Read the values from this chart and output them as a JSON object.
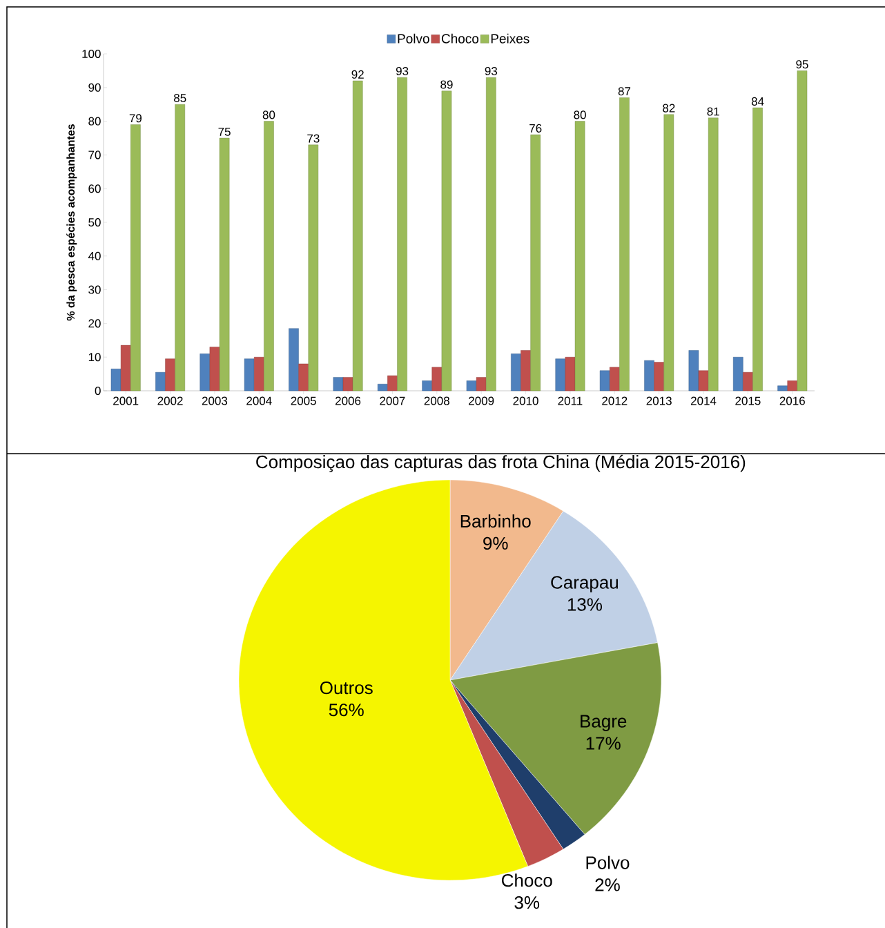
{
  "chart_data": [
    {
      "type": "bar",
      "ylabel": "% da pesca espécies acompanhantes",
      "categories": [
        "2001",
        "2002",
        "2003",
        "2004",
        "2005",
        "2006",
        "2007",
        "2008",
        "2009",
        "2010",
        "2011",
        "2012",
        "2013",
        "2014",
        "2015",
        "2016"
      ],
      "series": [
        {
          "name": "Polvo",
          "color": "#4f81bd",
          "values": [
            6.5,
            5.5,
            11,
            9.5,
            18.5,
            4,
            2,
            3,
            3,
            11,
            9.5,
            6,
            9,
            12,
            10,
            1.5
          ]
        },
        {
          "name": "Choco",
          "color": "#c0504d",
          "values": [
            13.5,
            9.5,
            13,
            10,
            8,
            4,
            4.5,
            7,
            4,
            12,
            10,
            7,
            8.5,
            6,
            5.5,
            3
          ]
        },
        {
          "name": "Peixes",
          "color": "#9bbb59",
          "values": [
            79,
            85,
            75,
            80,
            73,
            92,
            93,
            89,
            93,
            76,
            80,
            87,
            82,
            81,
            84,
            95
          ],
          "value_labels": [
            "79",
            "85",
            "75",
            "80",
            "73",
            "92",
            "93",
            "89",
            "93",
            "76",
            "80",
            "87",
            "82",
            "81",
            "84",
            "95"
          ]
        }
      ],
      "ylim": [
        0,
        100
      ],
      "yticks": [
        0,
        10,
        20,
        30,
        40,
        50,
        60,
        70,
        80,
        90,
        100
      ],
      "legend": "top"
    },
    {
      "type": "pie",
      "title": "Composiçao das capturas das frota China (Média 2015-2016)",
      "categories": [
        "Barbinho",
        "Carapau",
        "Bagre",
        "Polvo",
        "Choco",
        "Outros"
      ],
      "values": [
        9,
        13,
        17,
        2,
        3,
        56
      ],
      "colors": [
        "#f2b98d",
        "#c0d0e6",
        "#7f9b43",
        "#1f3e6b",
        "#c0504d",
        "#f5f500"
      ],
      "value_labels": [
        "9%",
        "13%",
        "17%",
        "2%",
        "3%",
        "56%"
      ]
    }
  ]
}
